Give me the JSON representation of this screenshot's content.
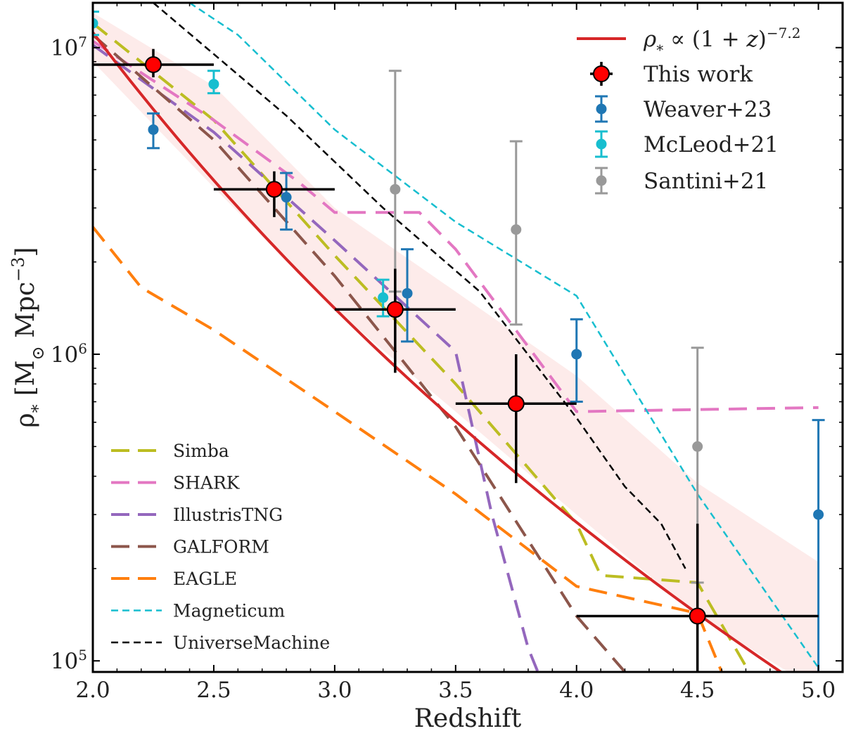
{
  "chart_data": {
    "type": "line",
    "xlabel": "Redshift",
    "ylabel_prefix": "ρ",
    "ylabel_sub": "*",
    "ylabel_units": "[M",
    "ylabel_sun": "⊙",
    "ylabel_mpc": " Mpc",
    "ylabel_exp": "−3",
    "ylabel_close": "]",
    "xlim": [
      2.0,
      5.1
    ],
    "ylim": [
      92000,
      14000000
    ],
    "yscale": "log",
    "x_ticks": [
      2.0,
      2.5,
      3.0,
      3.5,
      4.0,
      4.5,
      5.0
    ],
    "x_tick_labels": [
      "2.0",
      "2.5",
      "3.0",
      "3.5",
      "4.0",
      "4.5",
      "5.0"
    ],
    "y_tick_labels": [
      {
        "value": 10000000,
        "base": "10",
        "exp": "7"
      },
      {
        "value": 1000000,
        "base": "10",
        "exp": "6"
      },
      {
        "value": 100000,
        "base": "10",
        "exp": "5"
      }
    ],
    "fit": {
      "label_rho": "ρ",
      "label_sub": "*",
      "label_mid": " ∝ (1 + ",
      "label_z": "z",
      "label_end": ")",
      "label_exp": "−7.2",
      "color": "#d62728",
      "exponent": -7.2,
      "norm_at_z2": 11200000,
      "x_start": 2.0,
      "x_end": 5.0,
      "band_upper": [
        [
          2.0,
          13000000
        ],
        [
          2.5,
          7500000
        ],
        [
          3.0,
          3000000
        ],
        [
          3.5,
          1600000
        ],
        [
          4.0,
          850000
        ],
        [
          4.5,
          380000
        ],
        [
          5.0,
          210000
        ]
      ],
      "band_lower": [
        [
          2.0,
          9000000
        ],
        [
          2.5,
          3500000
        ],
        [
          3.0,
          1400000
        ],
        [
          3.5,
          650000
        ],
        [
          4.0,
          300000
        ],
        [
          4.5,
          140000
        ],
        [
          5.0,
          80000
        ]
      ],
      "band_color": "#fde8e6"
    },
    "this_work": {
      "name": "This work",
      "color": "#ff0000",
      "points": [
        {
          "x": 2.25,
          "y": 8800000,
          "xerr": [
            2.0,
            2.5
          ],
          "yerr": [
            8000000,
            9900000
          ]
        },
        {
          "x": 2.75,
          "y": 3450000,
          "xerr": [
            2.5,
            3.0
          ],
          "yerr": [
            2800000,
            3950000
          ]
        },
        {
          "x": 3.25,
          "y": 1400000,
          "xerr": [
            3.0,
            3.5
          ],
          "yerr": [
            870000,
            1900000
          ]
        },
        {
          "x": 3.75,
          "y": 690000,
          "xerr": [
            3.5,
            4.0
          ],
          "yerr": [
            380000,
            1000000
          ]
        },
        {
          "x": 4.5,
          "y": 140000,
          "xerr": [
            4.0,
            5.0
          ],
          "yerr": [
            85000,
            280000
          ]
        }
      ]
    },
    "observations": [
      {
        "name": "Weaver+23",
        "color": "#1f77b4",
        "points": [
          {
            "x": 2.25,
            "y": 5400000,
            "yerr": [
              4700000,
              6100000
            ]
          },
          {
            "x": 2.8,
            "y": 3250000,
            "yerr": [
              2550000,
              3900000
            ]
          },
          {
            "x": 3.3,
            "y": 1580000,
            "yerr": [
              1100000,
              2200000
            ]
          },
          {
            "x": 4.0,
            "y": 1000000,
            "yerr": [
              700000,
              1300000
            ]
          },
          {
            "x": 5.0,
            "y": 300000,
            "yerr": [
              85000,
              610000
            ]
          }
        ]
      },
      {
        "name": "McLeod+21",
        "color": "#17becf",
        "points": [
          {
            "x": 2.0,
            "y": 12000000,
            "yerr": [
              11000000,
              13100000
            ]
          },
          {
            "x": 2.5,
            "y": 7600000,
            "yerr": [
              7100000,
              8400000
            ]
          },
          {
            "x": 3.2,
            "y": 1530000,
            "yerr": [
              1330000,
              1750000
            ]
          }
        ]
      },
      {
        "name": "Santini+21",
        "color": "#999999",
        "points": [
          {
            "x": 3.25,
            "y": 3450000,
            "yerr": [
              1600000,
              8400000
            ]
          },
          {
            "x": 3.75,
            "y": 2550000,
            "yerr": [
              1250000,
              4950000
            ]
          },
          {
            "x": 4.5,
            "y": 500000,
            "yerr": [
              180000,
              1050000
            ]
          }
        ]
      }
    ],
    "models": [
      {
        "name": "Simba",
        "color": "#bcbd22",
        "style": "long",
        "points": [
          [
            2.0,
            12000000
          ],
          [
            2.5,
            5800000
          ],
          [
            3.0,
            2100000
          ],
          [
            3.5,
            800000
          ],
          [
            4.0,
            280000
          ],
          [
            4.1,
            190000
          ],
          [
            4.5,
            180000
          ],
          [
            4.7,
            96000
          ]
        ]
      },
      {
        "name": "SHARK",
        "color": "#e377c2",
        "style": "long",
        "points": [
          [
            2.0,
            10500000
          ],
          [
            2.5,
            5800000
          ],
          [
            2.85,
            3650000
          ],
          [
            3.0,
            2900000
          ],
          [
            3.35,
            2900000
          ],
          [
            3.5,
            2200000
          ],
          [
            4.0,
            650000
          ],
          [
            5.0,
            670000
          ]
        ]
      },
      {
        "name": "IllustrisTNG",
        "color": "#9467bd",
        "style": "long",
        "points": [
          [
            2.0,
            10200000
          ],
          [
            2.5,
            5300000
          ],
          [
            3.0,
            2350000
          ],
          [
            3.5,
            1020000
          ],
          [
            3.65,
            300000
          ],
          [
            3.8,
            110000
          ],
          [
            3.84,
            92000
          ]
        ]
      },
      {
        "name": "GALFORM",
        "color": "#8c564b",
        "style": "long",
        "points": [
          [
            2.0,
            11000000
          ],
          [
            2.5,
            5000000
          ],
          [
            3.0,
            1800000
          ],
          [
            3.5,
            580000
          ],
          [
            4.0,
            140000
          ],
          [
            4.2,
            92000
          ]
        ]
      },
      {
        "name": "EAGLE",
        "color": "#ff7f0e",
        "style": "long",
        "points": [
          [
            2.0,
            2600000
          ],
          [
            2.2,
            1650000
          ],
          [
            2.5,
            1200000
          ],
          [
            3.0,
            650000
          ],
          [
            3.5,
            350000
          ],
          [
            4.0,
            175000
          ],
          [
            4.5,
            143000
          ],
          [
            4.6,
            92000
          ]
        ]
      },
      {
        "name": "Magneticum",
        "color": "#17becf",
        "style": "short",
        "points": [
          [
            2.4,
            14000000
          ],
          [
            2.6,
            11000000
          ],
          [
            3.0,
            5400000
          ],
          [
            3.5,
            2700000
          ],
          [
            4.0,
            1550000
          ],
          [
            4.5,
            350000
          ],
          [
            5.0,
            95000
          ]
        ]
      },
      {
        "name": "UniverseMachine",
        "color": "#000000",
        "style": "short",
        "points": [
          [
            2.25,
            14000000
          ],
          [
            2.8,
            6000000
          ],
          [
            3.2,
            3000000
          ],
          [
            3.6,
            1600000
          ],
          [
            4.0,
            620000
          ],
          [
            4.2,
            370000
          ],
          [
            4.35,
            280000
          ],
          [
            4.45,
            200000
          ]
        ]
      }
    ]
  }
}
